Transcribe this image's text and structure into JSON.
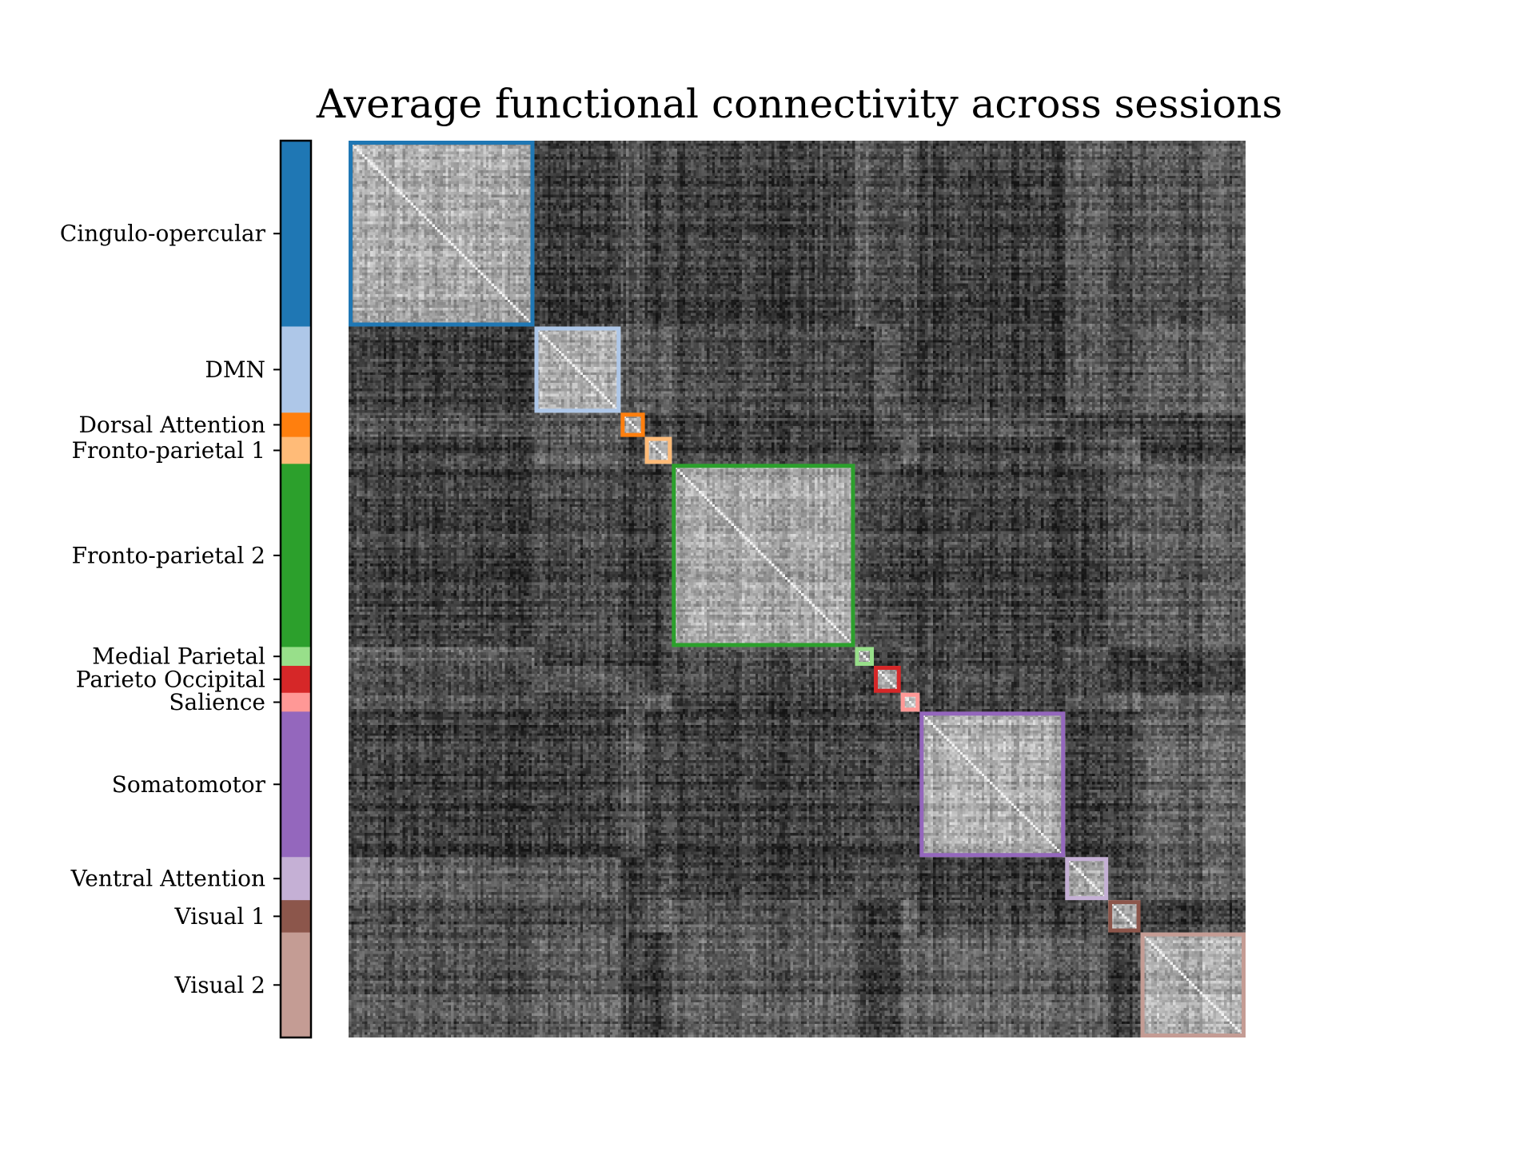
{
  "chart_data": {
    "type": "heatmap",
    "title": "Average functional connectivity across sessions",
    "xlabel": "",
    "ylabel": "",
    "colormap": "gray",
    "grid": false,
    "legend": "colored network bar on the left side of the matrix",
    "total_nodes": 333,
    "networks": [
      {
        "name": "Cingulo-opercular",
        "start": 0,
        "size": 69,
        "color": "#1f77b4"
      },
      {
        "name": "DMN",
        "start": 69,
        "size": 32,
        "color": "#aec7e8"
      },
      {
        "name": "Dorsal Attention",
        "start": 101,
        "size": 9,
        "color": "#ff7f0e"
      },
      {
        "name": "Fronto-parietal 1",
        "start": 110,
        "size": 10,
        "color": "#ffbb78"
      },
      {
        "name": "Fronto-parietal 2",
        "start": 120,
        "size": 68,
        "color": "#2ca02c"
      },
      {
        "name": "Medial Parietal",
        "start": 188,
        "size": 7,
        "color": "#98df8a"
      },
      {
        "name": "Parieto Occipital",
        "start": 195,
        "size": 10,
        "color": "#d62728"
      },
      {
        "name": "Salience",
        "start": 205,
        "size": 7,
        "color": "#ff9896"
      },
      {
        "name": "Somatomotor",
        "start": 212,
        "size": 54,
        "color": "#9467bd"
      },
      {
        "name": "Ventral Attention",
        "start": 266,
        "size": 16,
        "color": "#c5b0d5"
      },
      {
        "name": "Visual 1",
        "start": 282,
        "size": 12,
        "color": "#8c564b"
      },
      {
        "name": "Visual 2",
        "start": 294,
        "size": 39,
        "color": "#c49c94"
      }
    ],
    "within_network_brightness": 0.66,
    "between_network_brightness": 0.3,
    "diagonal_brightness": 0.95
  }
}
